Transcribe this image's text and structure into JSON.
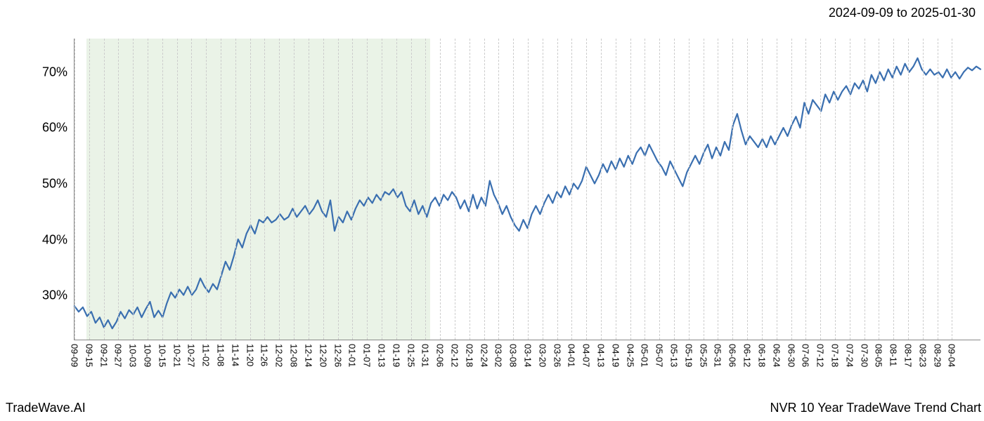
{
  "date_range_label": "2024-09-09 to 2025-01-30",
  "watermark_left": "TradeWave.AI",
  "watermark_right": "NVR 10 Year TradeWave Trend Chart",
  "chart": {
    "type": "line",
    "background_color": "#ffffff",
    "line_color": "#3a6fb0",
    "line_width": 2.2,
    "grid_color": "#cccccc",
    "highlight_fill": "#d9ead3",
    "highlight_opacity": 0.55,
    "axis_color": "#888888",
    "tick_label_color": "#000000",
    "y_label_fontsize": 18,
    "x_label_fontsize": 13,
    "ylim": [
      22,
      76
    ],
    "y_ticks": [
      30,
      40,
      50,
      60,
      70
    ],
    "y_tick_labels": [
      "30%",
      "40%",
      "50%",
      "60%",
      "70%"
    ],
    "x_tick_labels": [
      "09-09",
      "09-15",
      "09-21",
      "09-27",
      "10-03",
      "10-09",
      "10-15",
      "10-21",
      "10-27",
      "11-02",
      "11-08",
      "11-14",
      "11-20",
      "11-26",
      "12-02",
      "12-08",
      "12-14",
      "12-20",
      "12-26",
      "01-01",
      "01-07",
      "01-13",
      "01-19",
      "01-25",
      "01-31",
      "02-06",
      "02-12",
      "02-18",
      "02-24",
      "03-02",
      "03-08",
      "03-14",
      "03-20",
      "03-26",
      "04-01",
      "04-07",
      "04-13",
      "04-19",
      "04-25",
      "05-01",
      "05-07",
      "05-13",
      "05-19",
      "05-25",
      "05-31",
      "06-06",
      "06-12",
      "06-18",
      "06-24",
      "06-30",
      "07-06",
      "07-12",
      "07-18",
      "07-24",
      "07-30",
      "08-05",
      "08-11",
      "08-17",
      "08-23",
      "08-29",
      "09-04"
    ],
    "x_index_min": 0,
    "x_index_max": 62,
    "highlight_start_index": 0.8,
    "highlight_end_index": 24.3,
    "values": [
      28.0,
      27.0,
      27.8,
      26.2,
      27.0,
      25.0,
      26.0,
      24.2,
      25.5,
      24.0,
      25.2,
      27.0,
      25.8,
      27.3,
      26.5,
      27.8,
      26.0,
      27.5,
      28.8,
      26.0,
      27.2,
      26.0,
      28.5,
      30.5,
      29.5,
      31.0,
      30.0,
      31.5,
      30.0,
      31.0,
      33.0,
      31.5,
      30.5,
      32.0,
      31.0,
      33.5,
      36.0,
      34.5,
      37.0,
      40.0,
      38.5,
      41.0,
      42.5,
      41.0,
      43.5,
      43.0,
      44.0,
      43.0,
      43.5,
      44.5,
      43.5,
      44.0,
      45.5,
      44.0,
      45.0,
      46.0,
      44.5,
      45.5,
      47.0,
      45.0,
      44.0,
      47.0,
      41.5,
      44.0,
      43.0,
      45.0,
      43.5,
      45.5,
      47.0,
      46.0,
      47.5,
      46.5,
      48.0,
      47.0,
      48.5,
      48.0,
      49.0,
      47.5,
      48.5,
      46.0,
      45.0,
      47.0,
      44.5,
      46.0,
      44.0,
      46.5,
      47.5,
      46.0,
      48.0,
      47.0,
      48.5,
      47.5,
      45.5,
      47.0,
      45.0,
      48.0,
      45.5,
      47.5,
      46.0,
      50.5,
      48.0,
      46.5,
      44.5,
      46.0,
      44.0,
      42.5,
      41.5,
      43.5,
      42.0,
      44.5,
      46.0,
      44.5,
      46.5,
      48.0,
      46.5,
      48.5,
      47.5,
      49.5,
      48.0,
      50.0,
      49.0,
      50.5,
      53.0,
      51.5,
      50.0,
      51.5,
      53.5,
      52.0,
      54.0,
      52.5,
      54.5,
      53.0,
      55.0,
      53.5,
      55.5,
      56.5,
      55.0,
      57.0,
      55.5,
      54.0,
      53.0,
      51.5,
      54.0,
      52.5,
      51.0,
      49.5,
      52.0,
      53.5,
      55.0,
      53.5,
      55.5,
      57.0,
      54.5,
      56.5,
      55.0,
      57.5,
      56.0,
      60.5,
      62.5,
      59.5,
      57.0,
      58.5,
      57.5,
      56.5,
      58.0,
      56.5,
      58.5,
      57.0,
      58.5,
      60.0,
      58.5,
      60.5,
      62.0,
      60.0,
      64.5,
      62.5,
      65.0,
      64.0,
      63.0,
      66.0,
      64.5,
      66.5,
      65.0,
      66.5,
      67.5,
      66.0,
      68.0,
      67.0,
      68.5,
      66.5,
      69.5,
      68.0,
      70.0,
      68.5,
      70.5,
      69.0,
      71.0,
      69.5,
      71.5,
      70.0,
      71.0,
      72.5,
      70.5,
      69.5,
      70.5,
      69.5,
      70.0,
      69.0,
      70.5,
      69.0,
      70.0,
      68.8,
      70.0,
      70.8,
      70.3,
      71.0,
      70.5
    ]
  }
}
